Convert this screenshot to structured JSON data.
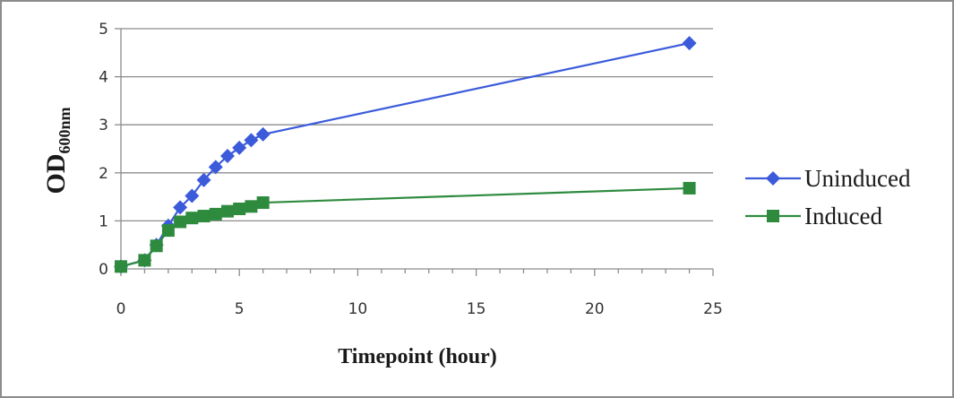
{
  "chart_data": {
    "type": "scatter",
    "title": "",
    "xlabel": "Timepoint (hour)",
    "ylabel": {
      "main": "OD",
      "subscript": "600nm"
    },
    "xlim": [
      0,
      25
    ],
    "ylim": [
      0,
      5
    ],
    "xticks": [
      0,
      5,
      10,
      15,
      20,
      25
    ],
    "yticks": [
      0,
      1,
      2,
      3,
      4,
      5
    ],
    "grid": "horizontal",
    "legend": "right",
    "series": [
      {
        "name": "Uninduced",
        "color": "#3b5bdb",
        "marker": "diamond",
        "x": [
          0,
          1,
          1.5,
          2,
          2.5,
          3,
          3.5,
          4,
          4.5,
          5,
          5.5,
          6,
          24
        ],
        "y": [
          0.05,
          0.18,
          0.5,
          0.9,
          1.28,
          1.52,
          1.85,
          2.12,
          2.35,
          2.52,
          2.68,
          2.8,
          4.7
        ]
      },
      {
        "name": "Induced",
        "color": "#2e8b3e",
        "marker": "square",
        "x": [
          0,
          1,
          1.5,
          2,
          2.5,
          3,
          3.5,
          4,
          4.5,
          5,
          5.5,
          6,
          24
        ],
        "y": [
          0.05,
          0.18,
          0.48,
          0.8,
          0.98,
          1.06,
          1.1,
          1.14,
          1.2,
          1.25,
          1.3,
          1.38,
          1.68
        ]
      }
    ]
  }
}
